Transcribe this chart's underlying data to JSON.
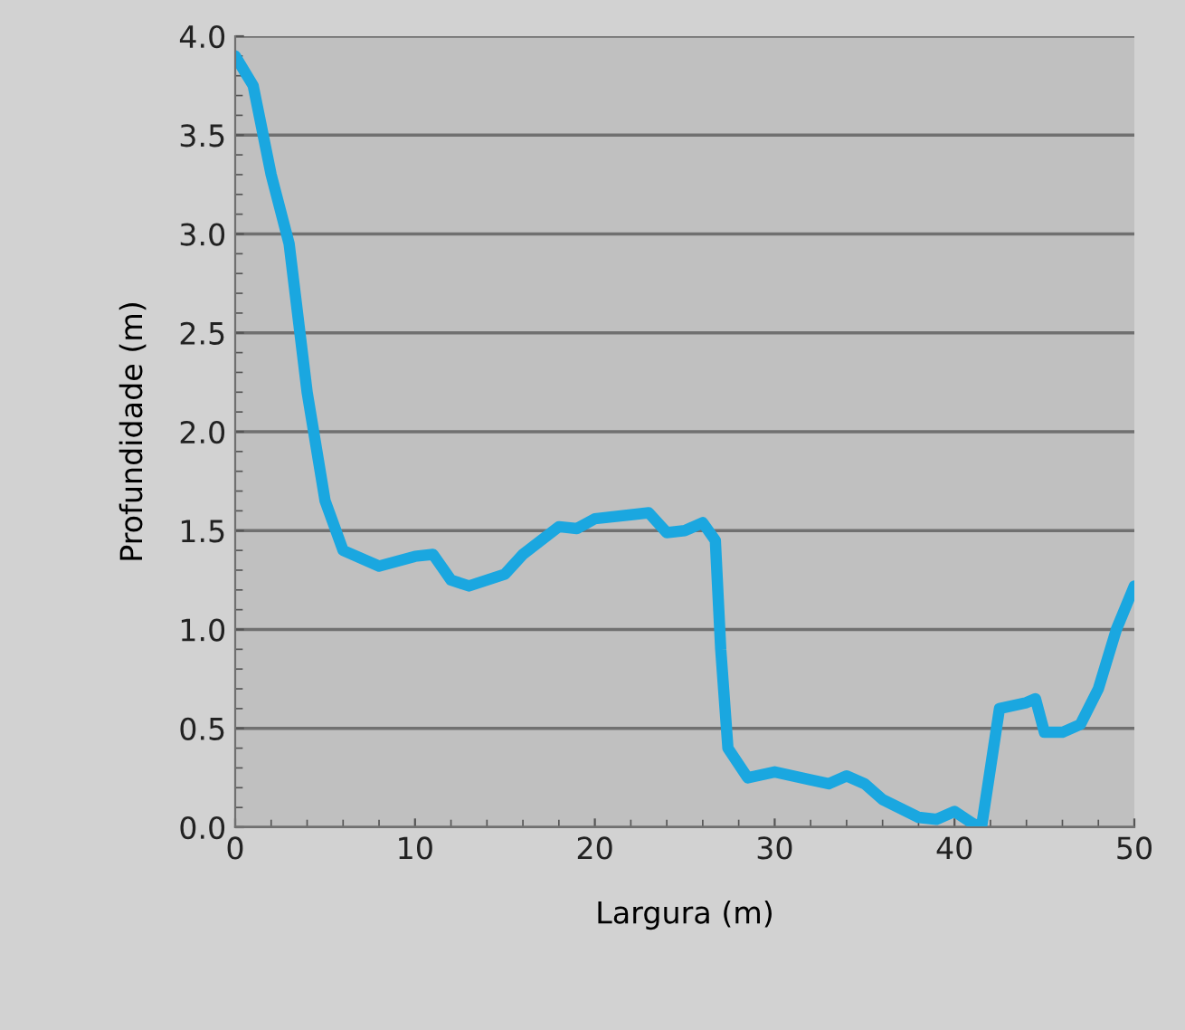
{
  "chart_data": {
    "type": "line",
    "xlabel": "Largura (m)",
    "ylabel": "Profundidade (m)",
    "xlim": [
      0,
      50
    ],
    "xticks": [
      0,
      10,
      20,
      30,
      40,
      50
    ],
    "ylim": [
      0,
      4
    ],
    "yticks": [
      {
        "value": 0,
        "label": "0.0"
      },
      {
        "value": 0.5,
        "label": "0.5"
      },
      {
        "value": 1,
        "label": "1.0"
      },
      {
        "value": 1.5,
        "label": "1.5"
      },
      {
        "value": 2,
        "label": "2.0"
      },
      {
        "value": 2.5,
        "label": "2.5"
      },
      {
        "value": 3,
        "label": "3.0"
      },
      {
        "value": 3.5,
        "label": "3.5"
      },
      {
        "value": 4,
        "label": "4.0"
      }
    ],
    "grid": "y",
    "marker": "none",
    "line_style": "solid",
    "series": [
      {
        "color": "#1aa7e0",
        "x": [
          0,
          1,
          2,
          3,
          4,
          5,
          6,
          8,
          10,
          11,
          12,
          13,
          15,
          16,
          18,
          19,
          20,
          22,
          23,
          24,
          25,
          26,
          26.7,
          27,
          27.4,
          28.5,
          30,
          32,
          33,
          34,
          35,
          36,
          38,
          39,
          40,
          41,
          41.5,
          42.5,
          44,
          44.5,
          45,
          46,
          47,
          48,
          49,
          50
        ],
        "values": [
          3.9,
          3.75,
          3.3,
          2.95,
          2.2,
          1.65,
          1.4,
          1.32,
          1.37,
          1.38,
          1.25,
          1.22,
          1.28,
          1.38,
          1.52,
          1.51,
          1.56,
          1.58,
          1.59,
          1.49,
          1.5,
          1.54,
          1.45,
          0.9,
          0.4,
          0.25,
          0.28,
          0.24,
          0.22,
          0.26,
          0.22,
          0.14,
          0.05,
          0.04,
          0.08,
          0.02,
          0.0,
          0.6,
          0.63,
          0.65,
          0.48,
          0.48,
          0.52,
          0.7,
          1.0,
          1.22
        ]
      }
    ]
  }
}
